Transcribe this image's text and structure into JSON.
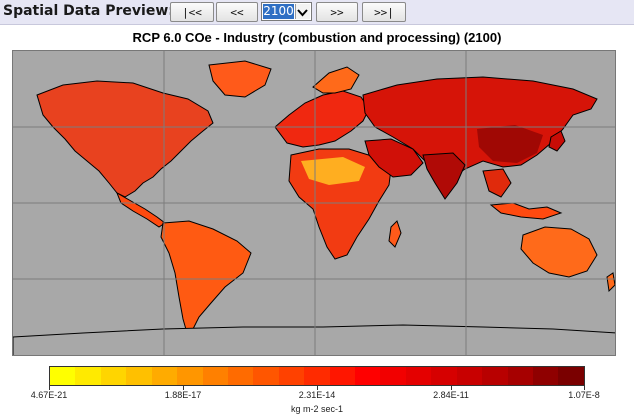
{
  "toolbar": {
    "title": "Spatial Data Preview:",
    "first_label": "|<<",
    "prev_label": "<<",
    "year_value": "2100",
    "next_label": ">>",
    "last_label": ">>|"
  },
  "map": {
    "title": "RCP 6.0 COe - Industry (combustion and processing) (2100)",
    "ocean_color": "#a8a8a8",
    "coast_color": "#000000",
    "grid_color": "#7c7c7c"
  },
  "legend": {
    "tick_labels": [
      "4.67E-21",
      "1.88E-17",
      "2.31E-14",
      "2.84E-11",
      "1.07E-8"
    ],
    "units": "kg m-2 sec-1",
    "colors": [
      "#ffff00",
      "#ffea00",
      "#ffd500",
      "#ffc000",
      "#ffab00",
      "#ff9600",
      "#ff8000",
      "#ff6b00",
      "#ff5600",
      "#ff4100",
      "#ff2b00",
      "#ff1600",
      "#ff0000",
      "#f20000",
      "#e40000",
      "#d60000",
      "#c80000",
      "#b80000",
      "#a60000",
      "#8f0000",
      "#7a0000"
    ]
  }
}
